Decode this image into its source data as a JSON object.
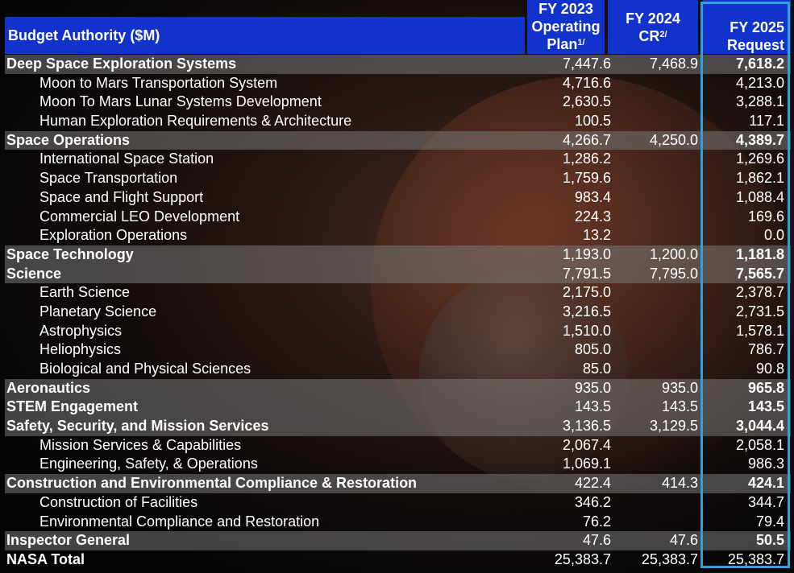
{
  "header": {
    "label": "Budget Authority ($M)",
    "col1_lines": [
      "FY 2023",
      "Operating",
      "Plan"
    ],
    "col1_sup": "1/",
    "col2_lines": [
      "FY 2024",
      "CR"
    ],
    "col2_sup": "2/",
    "col3_lines": [
      "FY 2025",
      "Request"
    ]
  },
  "rows": [
    {
      "type": "major",
      "label": "Deep Space Exploration Systems",
      "fy2023": "7,447.6",
      "fy2024": "7,468.9",
      "fy2025": "7,618.2"
    },
    {
      "type": "sub",
      "label": "Moon to Mars Transportation System",
      "fy2023": "4,716.6",
      "fy2024": "",
      "fy2025": "4,213.0"
    },
    {
      "type": "sub",
      "label": "Moon To Mars Lunar Systems Development",
      "fy2023": "2,630.5",
      "fy2024": "",
      "fy2025": "3,288.1"
    },
    {
      "type": "sub",
      "label": "Human Exploration Requirements & Architecture",
      "fy2023": "100.5",
      "fy2024": "",
      "fy2025": "117.1"
    },
    {
      "type": "major",
      "label": "Space Operations",
      "fy2023": "4,266.7",
      "fy2024": "4,250.0",
      "fy2025": "4,389.7"
    },
    {
      "type": "sub",
      "label": "International Space Station",
      "fy2023": "1,286.2",
      "fy2024": "",
      "fy2025": "1,269.6"
    },
    {
      "type": "sub",
      "label": "Space Transportation",
      "fy2023": "1,759.6",
      "fy2024": "",
      "fy2025": "1,862.1"
    },
    {
      "type": "sub",
      "label": "Space and Flight Support",
      "fy2023": "983.4",
      "fy2024": "",
      "fy2025": "1,088.4"
    },
    {
      "type": "sub",
      "label": "Commercial LEO Development",
      "fy2023": "224.3",
      "fy2024": "",
      "fy2025": "169.6"
    },
    {
      "type": "sub",
      "label": "Exploration Operations",
      "fy2023": "13.2",
      "fy2024": "",
      "fy2025": "0.0"
    },
    {
      "type": "major",
      "label": "Space Technology",
      "fy2023": "1,193.0",
      "fy2024": "1,200.0",
      "fy2025": "1,181.8"
    },
    {
      "type": "major",
      "label": "Science",
      "fy2023": "7,791.5",
      "fy2024": "7,795.0",
      "fy2025": "7,565.7"
    },
    {
      "type": "sub",
      "label": "Earth Science",
      "fy2023": "2,175.0",
      "fy2024": "",
      "fy2025": "2,378.7"
    },
    {
      "type": "sub",
      "label": "Planetary Science",
      "fy2023": "3,216.5",
      "fy2024": "",
      "fy2025": "2,731.5"
    },
    {
      "type": "sub",
      "label": "Astrophysics",
      "fy2023": "1,510.0",
      "fy2024": "",
      "fy2025": "1,578.1"
    },
    {
      "type": "sub",
      "label": "Heliophysics",
      "fy2023": "805.0",
      "fy2024": "",
      "fy2025": "786.7"
    },
    {
      "type": "sub",
      "label": "Biological and Physical Sciences",
      "fy2023": "85.0",
      "fy2024": "",
      "fy2025": "90.8"
    },
    {
      "type": "major",
      "label": "Aeronautics",
      "fy2023": "935.0",
      "fy2024": "935.0",
      "fy2025": "965.8"
    },
    {
      "type": "major",
      "label": "STEM Engagement",
      "fy2023": "143.5",
      "fy2024": "143.5",
      "fy2025": "143.5"
    },
    {
      "type": "major",
      "label": "Safety, Security, and Mission Services",
      "fy2023": "3,136.5",
      "fy2024": "3,129.5",
      "fy2025": "3,044.4"
    },
    {
      "type": "sub",
      "label": "Mission Services & Capabilities",
      "fy2023": "2,067.4",
      "fy2024": "",
      "fy2025": "2,058.1"
    },
    {
      "type": "sub",
      "label": "Engineering, Safety, & Operations",
      "fy2023": "1,069.1",
      "fy2024": "",
      "fy2025": "986.3"
    },
    {
      "type": "major",
      "label": "Construction and Environmental Compliance & Restoration",
      "fy2023": "422.4",
      "fy2024": "414.3",
      "fy2025": "424.1"
    },
    {
      "type": "sub",
      "label": "Construction of Facilities",
      "fy2023": "346.2",
      "fy2024": "",
      "fy2025": "344.7"
    },
    {
      "type": "sub",
      "label": "Environmental Compliance and Restoration",
      "fy2023": "76.2",
      "fy2024": "",
      "fy2025": "79.4"
    },
    {
      "type": "major",
      "label": "Inspector General",
      "fy2023": "47.6",
      "fy2024": "47.6",
      "fy2025": "50.5"
    },
    {
      "type": "total",
      "label": "NASA Total",
      "fy2023": "25,383.7",
      "fy2024": "25,383.7",
      "fy2025": "25,383.7"
    }
  ],
  "colors": {
    "header_bg": "#1133cc",
    "highlight_border": "#2aa4e0",
    "major_row_bg": "#787878"
  }
}
